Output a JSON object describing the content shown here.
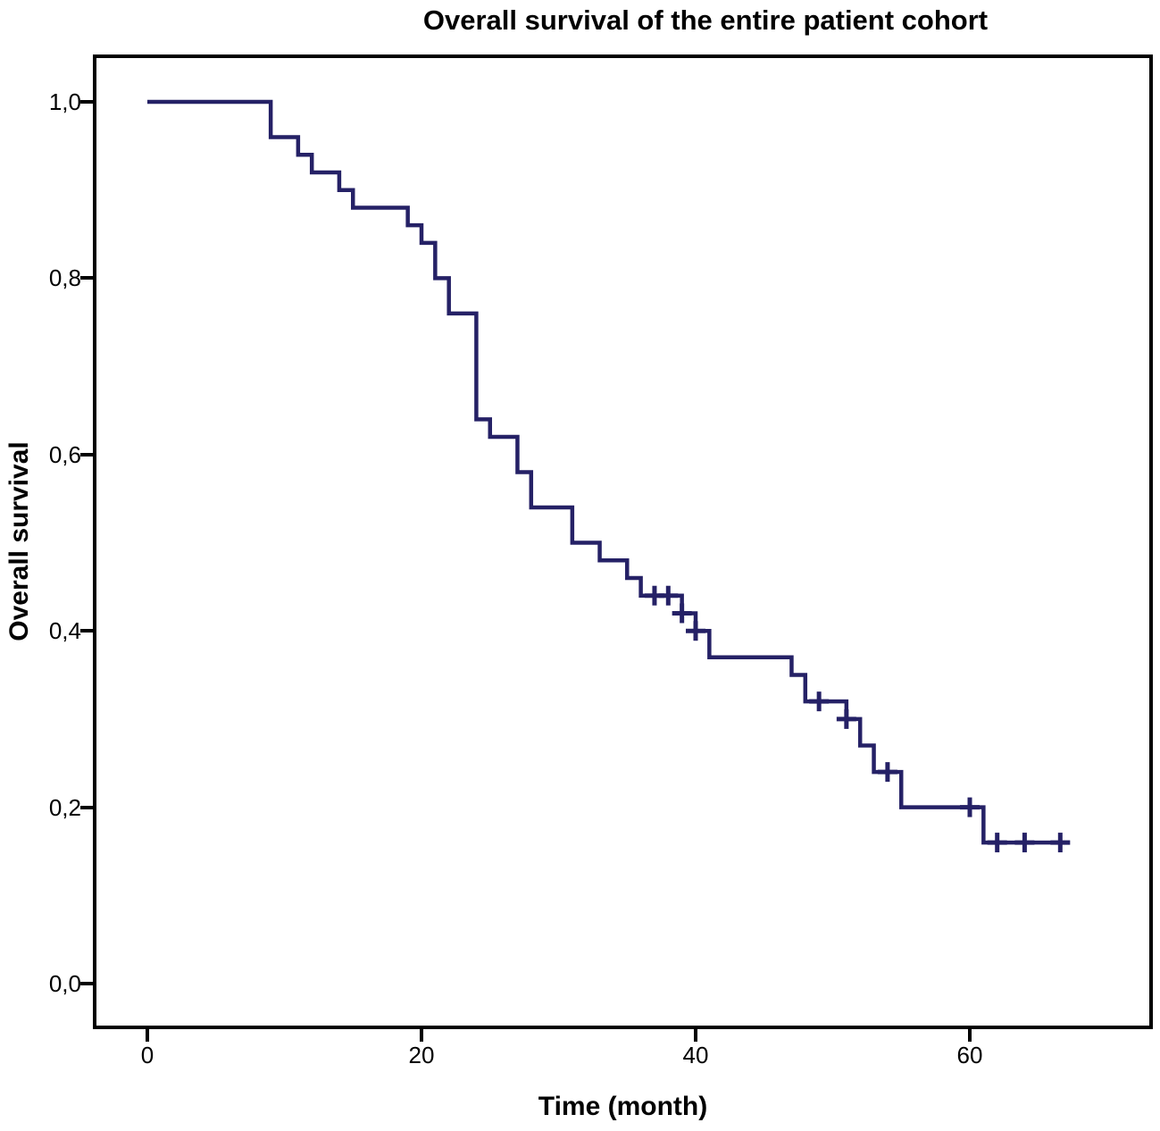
{
  "title": "Overall survival of the entire patient cohort",
  "colors": {
    "curve": "#252166",
    "axis": "#000000",
    "background": "#ffffff"
  },
  "chart_data": {
    "type": "line",
    "subtype": "kaplan-meier-step-curve",
    "title": "Overall survival of the entire patient cohort",
    "xlabel": "Time (month)",
    "ylabel": "Overall survival",
    "xlim": [
      -4,
      73
    ],
    "ylim": [
      -0.05,
      1.05
    ],
    "grid": false,
    "legend": false,
    "decimal_separator": ",",
    "x_ticks": [
      {
        "label": "0",
        "value": 0
      },
      {
        "label": "20",
        "value": 20
      },
      {
        "label": "40",
        "value": 40
      },
      {
        "label": "60",
        "value": 60
      }
    ],
    "y_ticks": [
      {
        "label": "0,0",
        "value": 0.0
      },
      {
        "label": "0,2",
        "value": 0.2
      },
      {
        "label": "0,4",
        "value": 0.4
      },
      {
        "label": "0,6",
        "value": 0.6
      },
      {
        "label": "0,8",
        "value": 0.8
      },
      {
        "label": "1,0",
        "value": 1.0
      }
    ],
    "series": [
      {
        "name": "Overall survival",
        "color": "#252166",
        "steps": [
          [
            0,
            1.0
          ],
          [
            9,
            0.96
          ],
          [
            11,
            0.94
          ],
          [
            12,
            0.92
          ],
          [
            14,
            0.9
          ],
          [
            15,
            0.88
          ],
          [
            19,
            0.86
          ],
          [
            20,
            0.84
          ],
          [
            21,
            0.8
          ],
          [
            22,
            0.76
          ],
          [
            24,
            0.64
          ],
          [
            25,
            0.62
          ],
          [
            27,
            0.58
          ],
          [
            28,
            0.54
          ],
          [
            31,
            0.5
          ],
          [
            33,
            0.48
          ],
          [
            35,
            0.46
          ],
          [
            36,
            0.44
          ],
          [
            39,
            0.42
          ],
          [
            40,
            0.4
          ],
          [
            41,
            0.37
          ],
          [
            47,
            0.35
          ],
          [
            48,
            0.32
          ],
          [
            51,
            0.3
          ],
          [
            52,
            0.27
          ],
          [
            53,
            0.24
          ],
          [
            55,
            0.2
          ],
          [
            61,
            0.16
          ]
        ],
        "curve_end_time": 67.3,
        "censor_marks": [
          [
            37,
            0.44
          ],
          [
            38,
            0.44
          ],
          [
            39,
            0.42
          ],
          [
            40,
            0.4
          ],
          [
            49,
            0.32
          ],
          [
            51,
            0.3
          ],
          [
            54,
            0.24
          ],
          [
            60,
            0.2
          ],
          [
            62,
            0.16
          ],
          [
            64,
            0.16
          ],
          [
            66.6,
            0.16
          ]
        ]
      }
    ]
  }
}
